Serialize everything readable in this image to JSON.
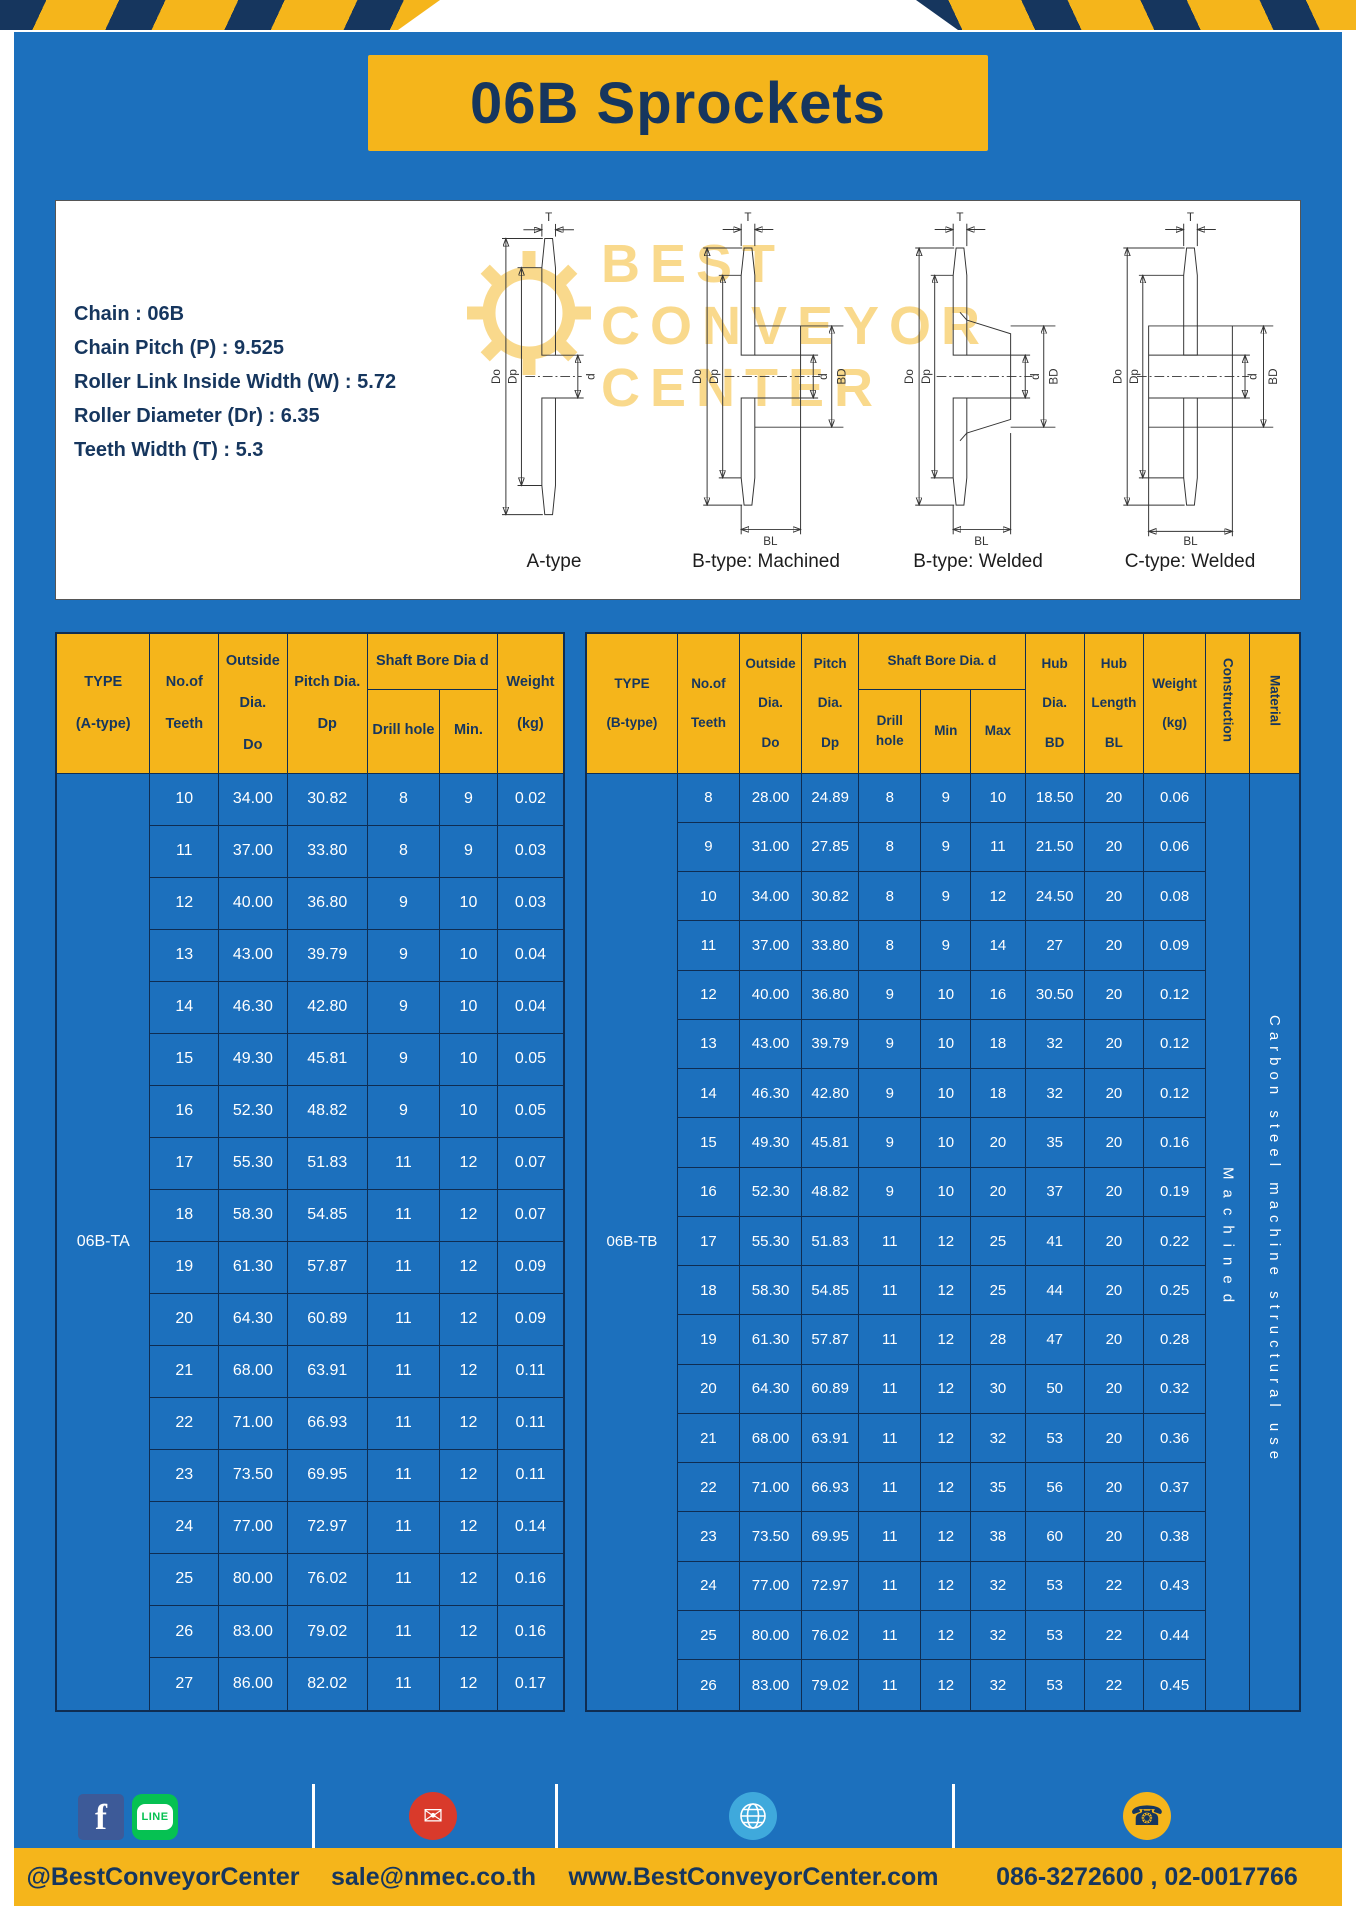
{
  "colors": {
    "yellow": "#F5B51B",
    "navy": "#16365E",
    "blue": "#1C70BD",
    "line": "#0F2D52"
  },
  "header": {
    "title": "06B Sprockets"
  },
  "specs": [
    "Chain : 06B",
    "Chain Pitch (P) : 9.525",
    "Roller Link Inside Width (W) : 5.72",
    "Roller Diameter (Dr) : 6.35",
    "Teeth Width (T) : 5.3"
  ],
  "diagrams": {
    "watermark": [
      "BEST",
      "CONVEYOR",
      "CENTER"
    ],
    "items": [
      {
        "label": "A-type",
        "dims": {
          "t": "T",
          "do": "Do",
          "dp": "Dp",
          "d": "d"
        }
      },
      {
        "label": "B-type: Machined",
        "dims": {
          "t": "T",
          "do": "Do",
          "dp": "Dp",
          "d": "d",
          "bd": "BD",
          "bl": "BL"
        }
      },
      {
        "label": "B-type: Welded",
        "dims": {
          "t": "T",
          "do": "Do",
          "dp": "Dp",
          "d": "d",
          "bd": "BD",
          "bl": "BL"
        }
      },
      {
        "label": "C-type: Welded",
        "dims": {
          "t": "T",
          "do": "Do",
          "dp": "Dp",
          "d": "d",
          "bd": "BD",
          "bl": "BL"
        }
      }
    ]
  },
  "table_a": {
    "head": {
      "type": "TYPE\n\n(A-type)",
      "teeth": "No.of\n\nTeeth",
      "outside": "Outside\n\nDia.\n\nDo",
      "pitch": "Pitch Dia.\n\nDp",
      "bore_group": "Shaft Bore Dia d",
      "drill": "Drill hole",
      "min": "Min.",
      "weight": "Weight\n\n(kg)"
    },
    "type_value": "06B-TA",
    "rows": [
      [
        "10",
        "34.00",
        "30.82",
        "8",
        "9",
        "0.02"
      ],
      [
        "11",
        "37.00",
        "33.80",
        "8",
        "9",
        "0.03"
      ],
      [
        "12",
        "40.00",
        "36.80",
        "9",
        "10",
        "0.03"
      ],
      [
        "13",
        "43.00",
        "39.79",
        "9",
        "10",
        "0.04"
      ],
      [
        "14",
        "46.30",
        "42.80",
        "9",
        "10",
        "0.04"
      ],
      [
        "15",
        "49.30",
        "45.81",
        "9",
        "10",
        "0.05"
      ],
      [
        "16",
        "52.30",
        "48.82",
        "9",
        "10",
        "0.05"
      ],
      [
        "17",
        "55.30",
        "51.83",
        "11",
        "12",
        "0.07"
      ],
      [
        "18",
        "58.30",
        "54.85",
        "11",
        "12",
        "0.07"
      ],
      [
        "19",
        "61.30",
        "57.87",
        "11",
        "12",
        "0.09"
      ],
      [
        "20",
        "64.30",
        "60.89",
        "11",
        "12",
        "0.09"
      ],
      [
        "21",
        "68.00",
        "63.91",
        "11",
        "12",
        "0.11"
      ],
      [
        "22",
        "71.00",
        "66.93",
        "11",
        "12",
        "0.11"
      ],
      [
        "23",
        "73.50",
        "69.95",
        "11",
        "12",
        "0.11"
      ],
      [
        "24",
        "77.00",
        "72.97",
        "11",
        "12",
        "0.14"
      ],
      [
        "25",
        "80.00",
        "76.02",
        "11",
        "12",
        "0.16"
      ],
      [
        "26",
        "83.00",
        "79.02",
        "11",
        "12",
        "0.16"
      ],
      [
        "27",
        "86.00",
        "82.02",
        "11",
        "12",
        "0.17"
      ]
    ]
  },
  "table_b": {
    "head": {
      "type": "TYPE\n\n(B-type)",
      "teeth": "No.of\n\nTeeth",
      "outside": "Outside\n\nDia.\n\nDo",
      "pitch": "Pitch\n\nDia.\n\nDp",
      "bore_group": "Shaft Bore Dia. d",
      "drill": "Drill hole",
      "min": "Min",
      "max": "Max",
      "hub_dia": "Hub\n\nDia.\n\nBD",
      "hub_len": "Hub\n\nLength\n\nBL",
      "weight": "Weight\n\n(kg)",
      "construction": "Construction",
      "material": "Material"
    },
    "type_value": "06B-TB",
    "construction_value": "Machined",
    "material_value": "Carbon steel machine structural use",
    "rows": [
      [
        "8",
        "28.00",
        "24.89",
        "8",
        "9",
        "10",
        "18.50",
        "20",
        "0.06"
      ],
      [
        "9",
        "31.00",
        "27.85",
        "8",
        "9",
        "11",
        "21.50",
        "20",
        "0.06"
      ],
      [
        "10",
        "34.00",
        "30.82",
        "8",
        "9",
        "12",
        "24.50",
        "20",
        "0.08"
      ],
      [
        "11",
        "37.00",
        "33.80",
        "8",
        "9",
        "14",
        "27",
        "20",
        "0.09"
      ],
      [
        "12",
        "40.00",
        "36.80",
        "9",
        "10",
        "16",
        "30.50",
        "20",
        "0.12"
      ],
      [
        "13",
        "43.00",
        "39.79",
        "9",
        "10",
        "18",
        "32",
        "20",
        "0.12"
      ],
      [
        "14",
        "46.30",
        "42.80",
        "9",
        "10",
        "18",
        "32",
        "20",
        "0.12"
      ],
      [
        "15",
        "49.30",
        "45.81",
        "9",
        "10",
        "20",
        "35",
        "20",
        "0.16"
      ],
      [
        "16",
        "52.30",
        "48.82",
        "9",
        "10",
        "20",
        "37",
        "20",
        "0.19"
      ],
      [
        "17",
        "55.30",
        "51.83",
        "11",
        "12",
        "25",
        "41",
        "20",
        "0.22"
      ],
      [
        "18",
        "58.30",
        "54.85",
        "11",
        "12",
        "25",
        "44",
        "20",
        "0.25"
      ],
      [
        "19",
        "61.30",
        "57.87",
        "11",
        "12",
        "28",
        "47",
        "20",
        "0.28"
      ],
      [
        "20",
        "64.30",
        "60.89",
        "11",
        "12",
        "30",
        "50",
        "20",
        "0.32"
      ],
      [
        "21",
        "68.00",
        "63.91",
        "11",
        "12",
        "32",
        "53",
        "20",
        "0.36"
      ],
      [
        "22",
        "71.00",
        "66.93",
        "11",
        "12",
        "35",
        "56",
        "20",
        "0.37"
      ],
      [
        "23",
        "73.50",
        "69.95",
        "11",
        "12",
        "38",
        "60",
        "20",
        "0.38"
      ],
      [
        "24",
        "77.00",
        "72.97",
        "11",
        "12",
        "32",
        "53",
        "22",
        "0.43"
      ],
      [
        "25",
        "80.00",
        "76.02",
        "11",
        "12",
        "32",
        "53",
        "22",
        "0.44"
      ],
      [
        "26",
        "83.00",
        "79.02",
        "11",
        "12",
        "32",
        "53",
        "22",
        "0.45"
      ]
    ]
  },
  "footer": {
    "social_handle": "@BestConveyorCenter",
    "email": "sale@nmec.co.th",
    "website": "www.BestConveyorCenter.com",
    "phone": "086-3272600 , 02-0017766",
    "facebook_glyph": "f",
    "line_label": "LINE"
  },
  "icons": {
    "email": "✉",
    "phone": "☎"
  }
}
